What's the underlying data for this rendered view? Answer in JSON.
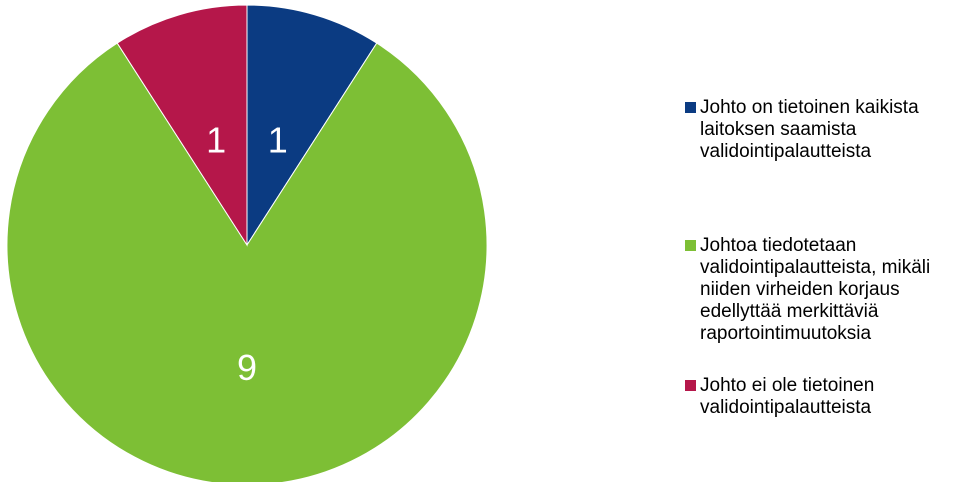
{
  "chart_data": {
    "type": "pie",
    "title": "",
    "legend_position": "right",
    "slices": [
      {
        "label": "Johto on tietoinen kaikista\nlaitoksen saamista\nvalidointipalautteista",
        "value": 1,
        "color": "#0b3b82"
      },
      {
        "label": "Johtoa tiedotetaan\nvalidointipalautteista, mikäli\nniiden virheiden korjaus\nedellyttää merkittäviä\nraportointimuutoksia",
        "value": 9,
        "color": "#7dbf35"
      },
      {
        "label": "Johto ei ole tietoinen\nvalidointipalautteista",
        "value": 1,
        "color": "#b5174a"
      }
    ],
    "value_label_color": "#ffffff"
  }
}
